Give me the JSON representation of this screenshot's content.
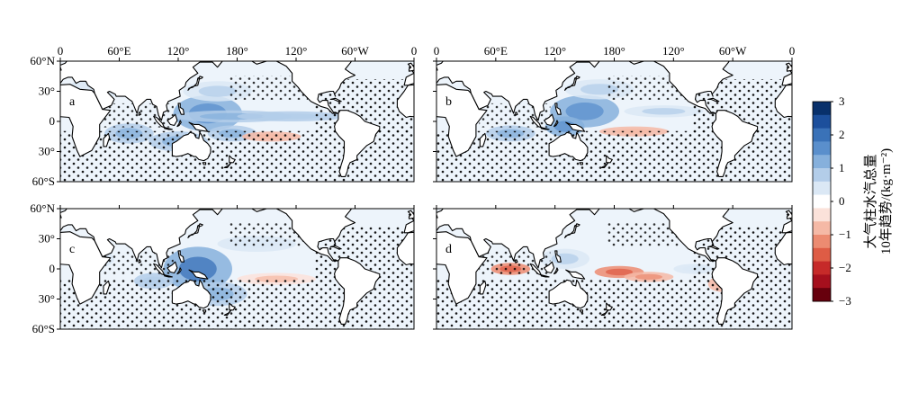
{
  "chart_data": {
    "type": "heatmap",
    "description_units": "10-year trend of total column water vapour",
    "colorbar": {
      "title_line1": "大气柱水汽总量",
      "title_line2": "10年趋势/(kg·m⁻²)",
      "ticks": [
        "3",
        "2",
        "1",
        "0",
        "−1",
        "−2",
        "−3"
      ],
      "range": [
        -3,
        3
      ],
      "colors": [
        "#08306b",
        "#1c4f9c",
        "#3a72b8",
        "#5a8fcc",
        "#86b0dc",
        "#b3cde9",
        "#dbe8f5",
        "#ffffff",
        "#fbe2da",
        "#f5b9a6",
        "#ec8b71",
        "#de5c45",
        "#c62a29",
        "#a50f1d",
        "#67000d"
      ]
    },
    "x_ticks": [
      "0",
      "60°E",
      "120°",
      "180°",
      "120°",
      "60°W",
      "0"
    ],
    "y_ticks": [
      "60°N",
      "30°",
      "0",
      "30°",
      "60°S"
    ],
    "xlim": [
      0,
      360
    ],
    "ylim": [
      -60,
      60
    ],
    "panels": [
      {
        "label": "a",
        "blobs": [
          {
            "lon": 150,
            "lat": 8,
            "rlon": 35,
            "rlat": 18,
            "value": 1.3
          },
          {
            "lon": 175,
            "lat": 5,
            "rlon": 60,
            "rlat": 6,
            "value": 0.8
          },
          {
            "lon": 235,
            "lat": 5,
            "rlon": 55,
            "rlat": 5,
            "value": 0.7
          },
          {
            "lon": 70,
            "lat": -12,
            "rlon": 25,
            "rlat": 10,
            "value": 1.0
          },
          {
            "lon": 120,
            "lat": -20,
            "rlon": 30,
            "rlat": 10,
            "value": 0.9
          },
          {
            "lon": 175,
            "lat": -12,
            "rlon": 25,
            "rlat": 8,
            "value": 0.8
          },
          {
            "lon": 215,
            "lat": -15,
            "rlon": 30,
            "rlat": 5,
            "value": -0.6
          },
          {
            "lon": 50,
            "lat": 35,
            "rlon": 40,
            "rlat": 10,
            "value": 0.4
          },
          {
            "lon": 160,
            "lat": 30,
            "rlon": 35,
            "rlat": 10,
            "value": 0.5
          }
        ]
      },
      {
        "label": "b",
        "blobs": [
          {
            "lon": 150,
            "lat": 10,
            "rlon": 35,
            "rlat": 16,
            "value": 1.1
          },
          {
            "lon": 130,
            "lat": -5,
            "rlon": 20,
            "rlat": 10,
            "value": 1.3
          },
          {
            "lon": 75,
            "lat": -12,
            "rlon": 25,
            "rlat": 8,
            "value": 0.8
          },
          {
            "lon": 200,
            "lat": -10,
            "rlon": 35,
            "rlat": 5,
            "value": -0.6
          },
          {
            "lon": 230,
            "lat": 10,
            "rlon": 40,
            "rlat": 6,
            "value": 0.5
          },
          {
            "lon": 165,
            "lat": 32,
            "rlon": 35,
            "rlat": 10,
            "value": 0.5
          }
        ]
      },
      {
        "label": "c",
        "blobs": [
          {
            "lon": 140,
            "lat": 0,
            "rlon": 35,
            "rlat": 22,
            "value": 1.4
          },
          {
            "lon": 160,
            "lat": -25,
            "rlon": 30,
            "rlat": 12,
            "value": 0.9
          },
          {
            "lon": 95,
            "lat": -12,
            "rlon": 20,
            "rlat": 8,
            "value": 0.7
          },
          {
            "lon": 220,
            "lat": -10,
            "rlon": 40,
            "rlat": 6,
            "value": -0.5
          },
          {
            "lon": 200,
            "lat": 25,
            "rlon": 40,
            "rlat": 8,
            "value": 0.4
          },
          {
            "lon": 30,
            "lat": 10,
            "rlon": 25,
            "rlat": 10,
            "value": 0.4
          }
        ]
      },
      {
        "label": "d",
        "blobs": [
          {
            "lon": 75,
            "lat": 0,
            "rlon": 20,
            "rlat": 6,
            "value": -1.3
          },
          {
            "lon": 185,
            "lat": -3,
            "rlon": 25,
            "rlat": 6,
            "value": -1.2
          },
          {
            "lon": 215,
            "lat": -8,
            "rlon": 25,
            "rlat": 5,
            "value": -0.9
          },
          {
            "lon": 130,
            "lat": 10,
            "rlon": 25,
            "rlat": 10,
            "value": 0.5
          },
          {
            "lon": 290,
            "lat": -15,
            "rlon": 15,
            "rlat": 8,
            "value": -0.7
          },
          {
            "lon": 260,
            "lat": 0,
            "rlon": 20,
            "rlat": 5,
            "value": 0.4
          }
        ]
      }
    ]
  }
}
